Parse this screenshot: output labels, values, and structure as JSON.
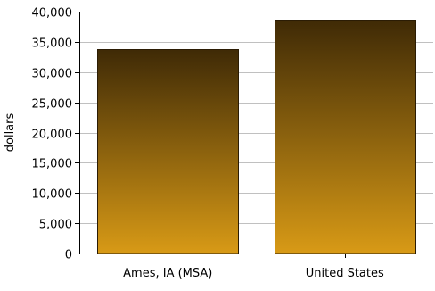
{
  "chart_data": {
    "type": "bar",
    "title": "",
    "xlabel": "",
    "ylabel": "dollars",
    "categories": [
      "Ames, IA (MSA)",
      "United States"
    ],
    "values": [
      33800,
      38600
    ],
    "ylim": [
      0,
      40000
    ],
    "yticks": [
      0,
      5000,
      10000,
      15000,
      20000,
      25000,
      30000,
      35000,
      40000
    ],
    "ytick_labels": [
      "0",
      "5,000",
      "10,000",
      "15,000",
      "20,000",
      "25,000",
      "30,000",
      "35,000",
      "40,000"
    ],
    "grid": true,
    "legend": "none",
    "colors": {
      "bar_top": "#3f2a06",
      "bar_bottom": "#d89a16",
      "bar_outline": "#2b1c04",
      "grid": "#c0c0c0",
      "axis": "#000000"
    }
  }
}
